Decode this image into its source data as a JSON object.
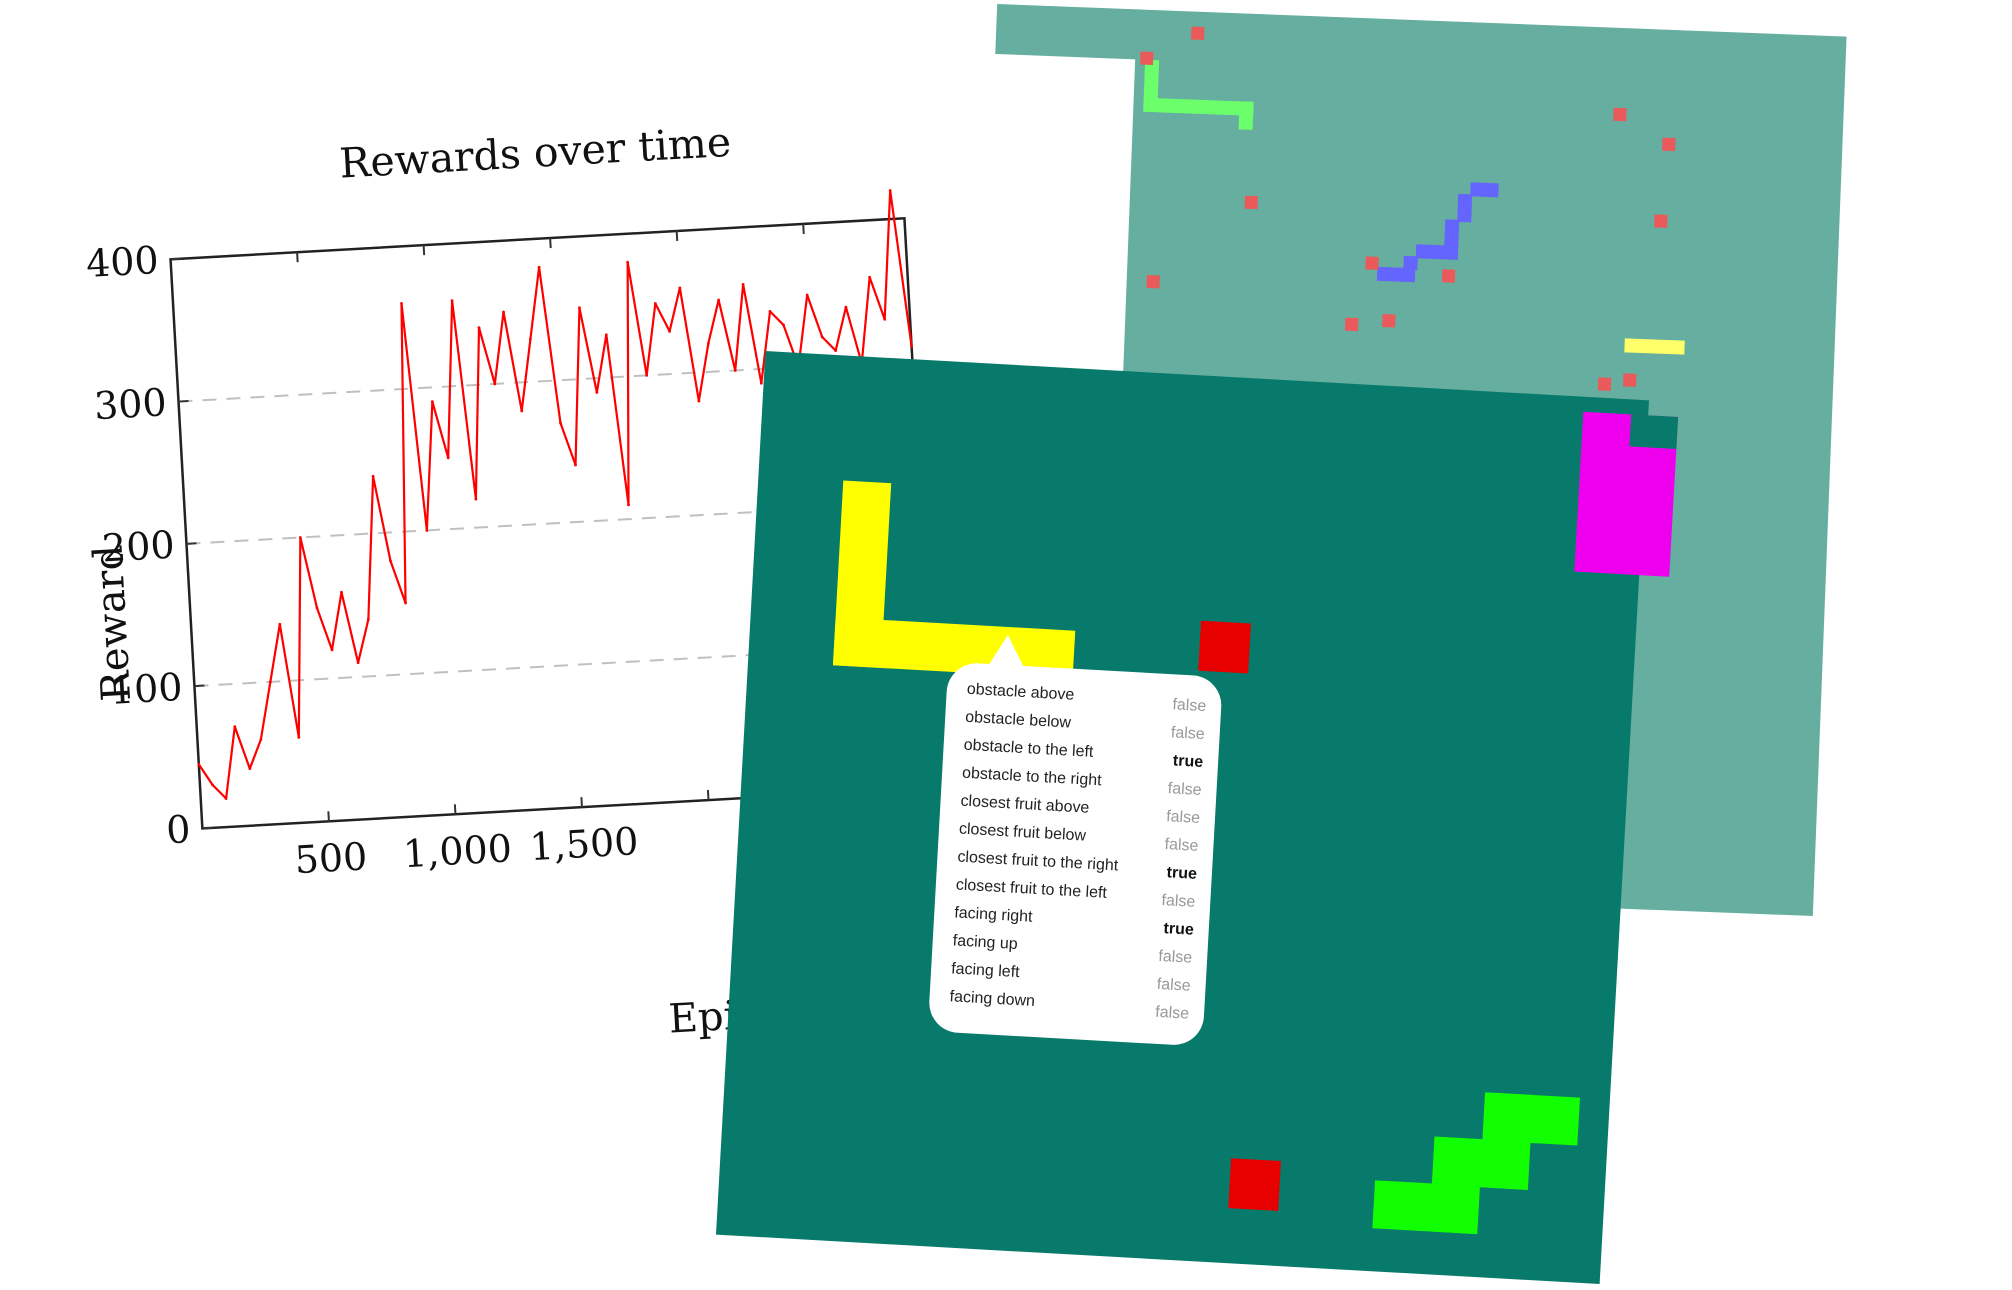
{
  "chart": {
    "title": "Rewards over time",
    "ylabel": "Reward",
    "xlabel": "Episod",
    "y_ticks": [
      "0",
      "100",
      "200",
      "300",
      "400"
    ],
    "x_ticks": [
      "500",
      "1,000",
      "1,500"
    ]
  },
  "chart_data": {
    "type": "line",
    "title": "Rewards over time",
    "xlabel": "Episode",
    "ylabel": "Reward",
    "xlim": [
      0,
      2900
    ],
    "ylim": [
      0,
      400
    ],
    "grid": "horizontal-dashed",
    "line_color": "#ff0000",
    "series": [
      {
        "x": [
          0,
          50,
          100,
          150,
          200,
          250,
          300,
          350,
          400,
          450,
          500,
          550,
          600,
          650,
          700,
          750,
          800,
          850,
          900,
          950,
          1000,
          1050,
          1100,
          1150,
          1200,
          1250,
          1300,
          1350,
          1400,
          1450,
          1500,
          1550,
          1600,
          1650,
          1700,
          1750,
          1800,
          1850,
          1900,
          1950,
          2000,
          2050,
          2100,
          2150,
          2200,
          2250,
          2300,
          2350,
          2400,
          2450,
          2500,
          2550,
          2600,
          2650,
          2700,
          2750,
          2800,
          2850,
          2900
        ],
        "y": [
          45,
          30,
          20,
          70,
          40,
          60,
          100,
          140,
          60,
          200,
          150,
          120,
          160,
          110,
          140,
          240,
          180,
          150,
          360,
          200,
          290,
          250,
          360,
          220,
          340,
          300,
          350,
          280,
          330,
          380,
          270,
          240,
          350,
          290,
          330,
          210,
          380,
          300,
          350,
          330,
          360,
          280,
          320,
          350,
          300,
          360,
          290,
          340,
          330,
          300,
          350,
          320,
          310,
          340,
          300,
          360,
          330,
          420,
          310
        ]
      }
    ]
  },
  "front_board": {
    "background": "#087a6b",
    "snake_yellow": "#ffff00",
    "snake_green": "#11ff00",
    "snake_magenta": "#ee00ee",
    "fruit_color": "#e60000"
  },
  "back_board": {
    "background": "#66ae9f",
    "snake_green": "#6cff6c",
    "snake_blue": "#6464ff",
    "fruit_color": "#ea5a5a"
  },
  "state": [
    {
      "label": "obstacle above",
      "value": "false"
    },
    {
      "label": "obstacle below",
      "value": "false"
    },
    {
      "label": "obstacle to the left",
      "value": "true"
    },
    {
      "label": "obstacle to the right",
      "value": "false"
    },
    {
      "label": "closest fruit above",
      "value": "false"
    },
    {
      "label": "closest fruit below",
      "value": "false"
    },
    {
      "label": "closest fruit to the right",
      "value": "true"
    },
    {
      "label": "closest fruit to the left",
      "value": "false"
    },
    {
      "label": "facing right",
      "value": "true"
    },
    {
      "label": "facing up",
      "value": "false"
    },
    {
      "label": "facing left",
      "value": "false"
    },
    {
      "label": "facing down",
      "value": "false"
    }
  ]
}
